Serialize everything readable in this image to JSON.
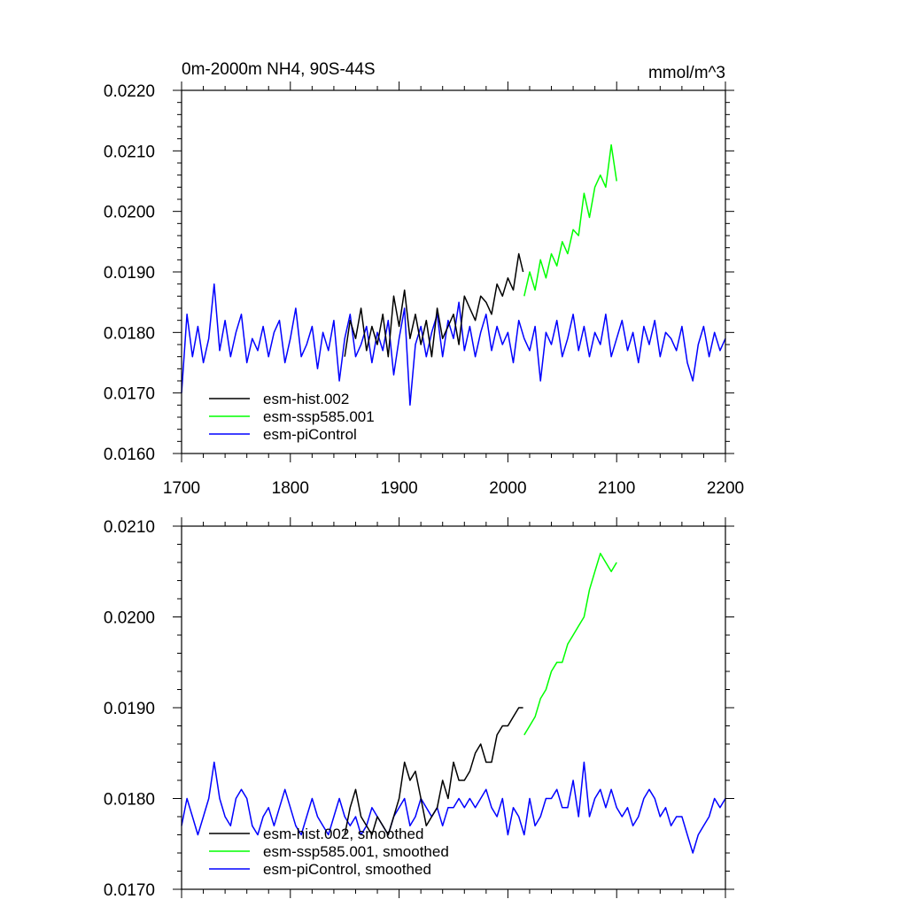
{
  "chart_data": [
    {
      "type": "line",
      "title": "0m-2000m NH4, 90S-44S",
      "units": "mmol/m^3",
      "xlim": [
        1700,
        2200
      ],
      "ylim": [
        0.016,
        0.022
      ],
      "x_ticks": [
        1700,
        1800,
        1900,
        2000,
        2100,
        2200
      ],
      "x_tick_labels": [
        "1700",
        "1800",
        "1900",
        "2000",
        "2100",
        "2200"
      ],
      "y_ticks": [
        0.016,
        0.017,
        0.018,
        0.019,
        0.02,
        0.021,
        0.022
      ],
      "y_tick_labels": [
        "0.0160",
        "0.0170",
        "0.0180",
        "0.0190",
        "0.0200",
        "0.0210",
        "0.0220"
      ],
      "grid": false,
      "legend_position": "bottom-left",
      "series": [
        {
          "name": "esm-hist.002",
          "color": "#000000",
          "x": [
            1850,
            1855,
            1860,
            1865,
            1870,
            1875,
            1880,
            1885,
            1890,
            1895,
            1900,
            1905,
            1910,
            1915,
            1920,
            1925,
            1930,
            1935,
            1940,
            1945,
            1950,
            1955,
            1960,
            1965,
            1970,
            1975,
            1980,
            1985,
            1990,
            1995,
            2000,
            2005,
            2010,
            2014
          ],
          "y": [
            0.0176,
            0.0182,
            0.0179,
            0.0184,
            0.0177,
            0.0181,
            0.0178,
            0.0183,
            0.0176,
            0.0186,
            0.0181,
            0.0187,
            0.0179,
            0.0183,
            0.0178,
            0.0182,
            0.0176,
            0.0184,
            0.0179,
            0.0181,
            0.0183,
            0.0178,
            0.0186,
            0.0184,
            0.0182,
            0.0186,
            0.0185,
            0.0183,
            0.0188,
            0.0186,
            0.0189,
            0.0187,
            0.0193,
            0.019
          ]
        },
        {
          "name": "esm-ssp585.001",
          "color": "#00ff00",
          "x": [
            2015,
            2020,
            2025,
            2030,
            2035,
            2040,
            2045,
            2050,
            2055,
            2060,
            2065,
            2070,
            2075,
            2080,
            2085,
            2090,
            2095,
            2100
          ],
          "y": [
            0.0186,
            0.019,
            0.0187,
            0.0192,
            0.0189,
            0.0193,
            0.0191,
            0.0195,
            0.0193,
            0.0197,
            0.0196,
            0.0203,
            0.0199,
            0.0204,
            0.0206,
            0.0204,
            0.0211,
            0.0205
          ]
        },
        {
          "name": "esm-piControl",
          "color": "#0000ff",
          "x": [
            1700,
            1705,
            1710,
            1715,
            1720,
            1725,
            1730,
            1735,
            1740,
            1745,
            1750,
            1755,
            1760,
            1765,
            1770,
            1775,
            1780,
            1785,
            1790,
            1795,
            1800,
            1805,
            1810,
            1815,
            1820,
            1825,
            1830,
            1835,
            1840,
            1845,
            1850,
            1855,
            1860,
            1865,
            1870,
            1875,
            1880,
            1885,
            1890,
            1895,
            1900,
            1905,
            1910,
            1915,
            1920,
            1925,
            1930,
            1935,
            1940,
            1945,
            1950,
            1955,
            1960,
            1965,
            1970,
            1975,
            1980,
            1985,
            1990,
            1995,
            2000,
            2005,
            2010,
            2015,
            2020,
            2025,
            2030,
            2035,
            2040,
            2045,
            2050,
            2055,
            2060,
            2065,
            2070,
            2075,
            2080,
            2085,
            2090,
            2095,
            2100,
            2105,
            2110,
            2115,
            2120,
            2125,
            2130,
            2135,
            2140,
            2145,
            2150,
            2155,
            2160,
            2165,
            2170,
            2175,
            2180,
            2185,
            2190,
            2195,
            2200
          ],
          "y": [
            0.017,
            0.0183,
            0.0176,
            0.0181,
            0.0175,
            0.0179,
            0.0188,
            0.0177,
            0.0182,
            0.0176,
            0.018,
            0.0183,
            0.0175,
            0.0179,
            0.0177,
            0.0181,
            0.0176,
            0.018,
            0.0182,
            0.0175,
            0.0179,
            0.0184,
            0.0176,
            0.0178,
            0.0181,
            0.0174,
            0.018,
            0.0177,
            0.0182,
            0.0172,
            0.0179,
            0.0183,
            0.0176,
            0.0178,
            0.0181,
            0.0175,
            0.018,
            0.0177,
            0.0182,
            0.0173,
            0.0179,
            0.0184,
            0.0168,
            0.0178,
            0.0181,
            0.0176,
            0.018,
            0.0183,
            0.0176,
            0.0182,
            0.0179,
            0.0185,
            0.0177,
            0.0181,
            0.0176,
            0.018,
            0.0183,
            0.0177,
            0.0181,
            0.0178,
            0.018,
            0.0175,
            0.0182,
            0.0179,
            0.0177,
            0.0181,
            0.0172,
            0.018,
            0.0178,
            0.0182,
            0.0176,
            0.0179,
            0.0183,
            0.0177,
            0.0181,
            0.0176,
            0.018,
            0.0178,
            0.0183,
            0.0176,
            0.0179,
            0.0182,
            0.0177,
            0.018,
            0.0175,
            0.0181,
            0.0178,
            0.0182,
            0.0176,
            0.018,
            0.0179,
            0.0177,
            0.0181,
            0.0175,
            0.0172,
            0.0178,
            0.0181,
            0.0176,
            0.018,
            0.0177,
            0.0179
          ]
        }
      ]
    },
    {
      "type": "line",
      "title": "",
      "xlim": [
        1700,
        2200
      ],
      "ylim": [
        0.017,
        0.021
      ],
      "y_ticks": [
        0.017,
        0.018,
        0.019,
        0.02,
        0.021
      ],
      "y_tick_labels": [
        "0.0170",
        "0.0180",
        "0.0190",
        "0.0200",
        "0.0210"
      ],
      "grid": false,
      "legend_position": "bottom-left",
      "series": [
        {
          "name": "esm-hist.002, smoothed",
          "color": "#000000",
          "x": [
            1850,
            1855,
            1860,
            1865,
            1870,
            1875,
            1880,
            1885,
            1890,
            1895,
            1900,
            1905,
            1910,
            1915,
            1920,
            1925,
            1930,
            1935,
            1940,
            1945,
            1950,
            1955,
            1960,
            1965,
            1970,
            1975,
            1980,
            1985,
            1990,
            1995,
            2000,
            2005,
            2010,
            2014
          ],
          "y": [
            0.0176,
            0.0179,
            0.0181,
            0.0178,
            0.0177,
            0.0176,
            0.0178,
            0.0177,
            0.0176,
            0.0178,
            0.018,
            0.0184,
            0.0182,
            0.0183,
            0.018,
            0.0177,
            0.0178,
            0.0179,
            0.0182,
            0.018,
            0.0184,
            0.0182,
            0.0182,
            0.0183,
            0.0185,
            0.0186,
            0.0184,
            0.0184,
            0.0187,
            0.0188,
            0.0188,
            0.0189,
            0.019,
            0.019
          ]
        },
        {
          "name": "esm-ssp585.001, smoothed",
          "color": "#00ff00",
          "x": [
            2015,
            2020,
            2025,
            2030,
            2035,
            2040,
            2045,
            2050,
            2055,
            2060,
            2065,
            2070,
            2075,
            2080,
            2085,
            2090,
            2095,
            2100
          ],
          "y": [
            0.0187,
            0.0188,
            0.0189,
            0.0191,
            0.0192,
            0.0194,
            0.0195,
            0.0195,
            0.0197,
            0.0198,
            0.0199,
            0.02,
            0.0203,
            0.0205,
            0.0207,
            0.0206,
            0.0205,
            0.0206
          ]
        },
        {
          "name": "esm-piControl, smoothed",
          "color": "#0000ff",
          "x": [
            1700,
            1705,
            1710,
            1715,
            1720,
            1725,
            1730,
            1735,
            1740,
            1745,
            1750,
            1755,
            1760,
            1765,
            1770,
            1775,
            1780,
            1785,
            1790,
            1795,
            1800,
            1805,
            1810,
            1815,
            1820,
            1825,
            1830,
            1835,
            1840,
            1845,
            1850,
            1855,
            1860,
            1865,
            1870,
            1875,
            1880,
            1885,
            1890,
            1895,
            1900,
            1905,
            1910,
            1915,
            1920,
            1925,
            1930,
            1935,
            1940,
            1945,
            1950,
            1955,
            1960,
            1965,
            1970,
            1975,
            1980,
            1985,
            1990,
            1995,
            2000,
            2005,
            2010,
            2015,
            2020,
            2025,
            2030,
            2035,
            2040,
            2045,
            2050,
            2055,
            2060,
            2065,
            2070,
            2075,
            2080,
            2085,
            2090,
            2095,
            2100,
            2105,
            2110,
            2115,
            2120,
            2125,
            2130,
            2135,
            2140,
            2145,
            2150,
            2155,
            2160,
            2165,
            2170,
            2175,
            2180,
            2185,
            2190,
            2195,
            2200
          ],
          "y": [
            0.0177,
            0.018,
            0.0178,
            0.0176,
            0.0178,
            0.018,
            0.0184,
            0.018,
            0.0178,
            0.0177,
            0.018,
            0.0181,
            0.018,
            0.0177,
            0.0176,
            0.0178,
            0.0179,
            0.0177,
            0.0179,
            0.0181,
            0.0179,
            0.0177,
            0.0176,
            0.0178,
            0.018,
            0.0178,
            0.0177,
            0.0176,
            0.0178,
            0.018,
            0.0178,
            0.0177,
            0.0178,
            0.0176,
            0.0177,
            0.0179,
            0.0178,
            0.0177,
            0.0176,
            0.0178,
            0.0179,
            0.018,
            0.0177,
            0.0178,
            0.018,
            0.0179,
            0.0178,
            0.0179,
            0.0177,
            0.0179,
            0.0179,
            0.018,
            0.0179,
            0.018,
            0.0179,
            0.018,
            0.0181,
            0.0179,
            0.0178,
            0.018,
            0.0176,
            0.0179,
            0.0178,
            0.0176,
            0.018,
            0.0177,
            0.0178,
            0.018,
            0.018,
            0.0181,
            0.0179,
            0.0179,
            0.0182,
            0.0178,
            0.0184,
            0.0178,
            0.018,
            0.0181,
            0.0179,
            0.0181,
            0.0179,
            0.0178,
            0.0179,
            0.0177,
            0.0178,
            0.018,
            0.0181,
            0.018,
            0.0178,
            0.0179,
            0.0177,
            0.0178,
            0.0178,
            0.0176,
            0.0174,
            0.0176,
            0.0177,
            0.0178,
            0.018,
            0.0179,
            0.018
          ]
        }
      ]
    }
  ]
}
